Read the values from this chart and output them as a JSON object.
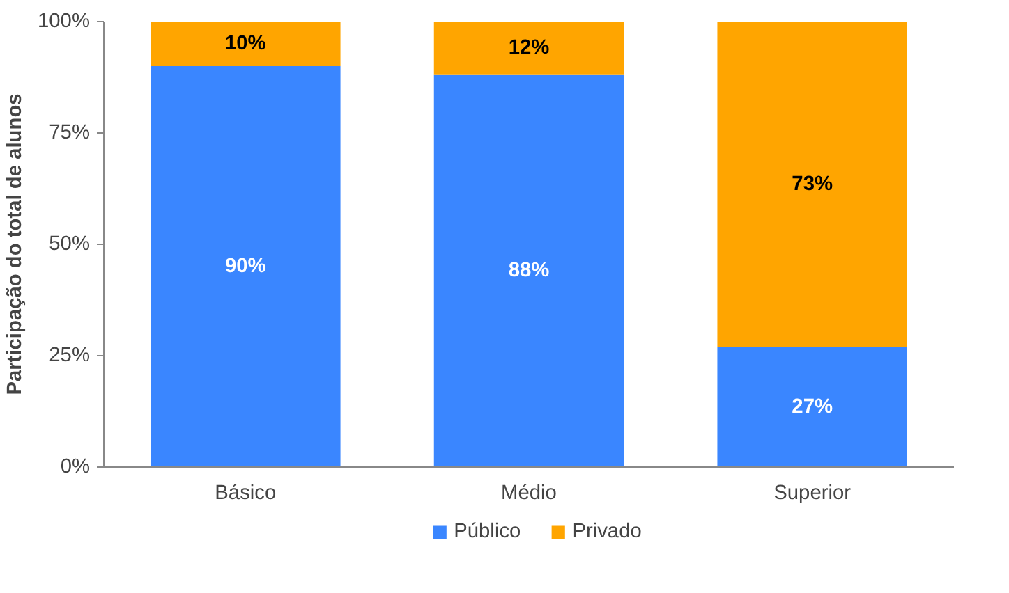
{
  "chart_data": {
    "type": "bar",
    "stacked": true,
    "categories": [
      "Básico",
      "Médio",
      "Superior"
    ],
    "ylabel": "Participação do total de alunos",
    "ylim": [
      0,
      100
    ],
    "yticks": [
      {
        "value": 0,
        "label": "0%"
      },
      {
        "value": 25,
        "label": "25%"
      },
      {
        "value": 50,
        "label": "50%"
      },
      {
        "value": 75,
        "label": "75%"
      },
      {
        "value": 100,
        "label": "100%"
      }
    ],
    "grid": false,
    "legend": "bottom",
    "series": [
      {
        "name": "Público",
        "color": "#3a86ff",
        "values": [
          90,
          88,
          27
        ],
        "value_labels": [
          "90%",
          "88%",
          "27%"
        ]
      },
      {
        "name": "Privado",
        "color": "#ffa500",
        "values": [
          10,
          12,
          73
        ],
        "value_labels": [
          "10%",
          "12%",
          "73%"
        ]
      }
    ]
  }
}
